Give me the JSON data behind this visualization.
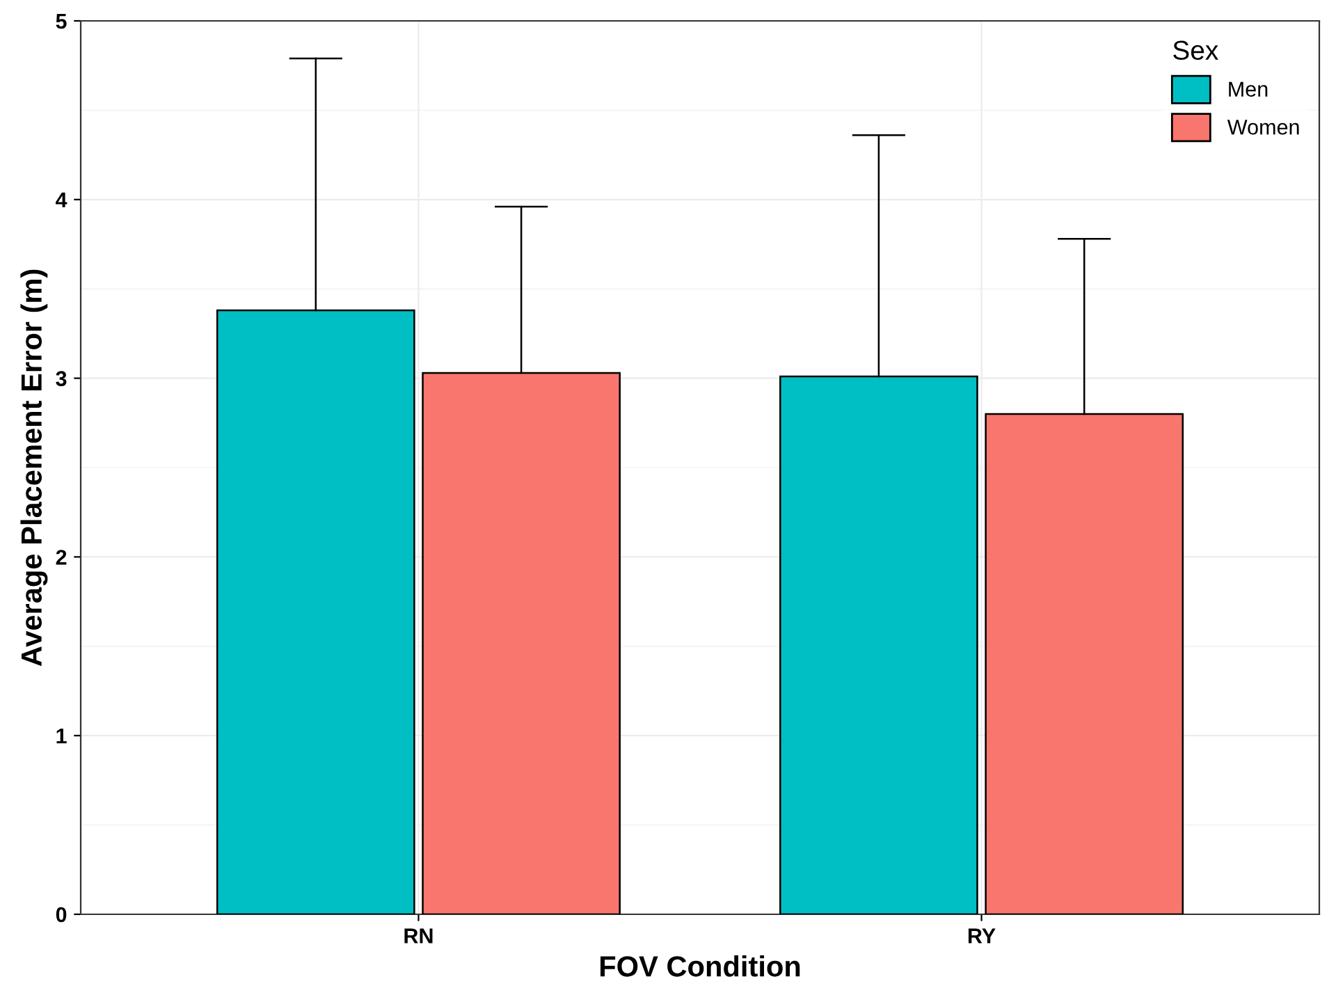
{
  "chart_data": {
    "type": "bar",
    "xlabel": "FOV Condition",
    "ylabel": "Average Placement Error (m)",
    "legend_title": "Sex",
    "categories": [
      "RN",
      "RY"
    ],
    "series": [
      {
        "name": "Men",
        "color": "#00bfc4",
        "values": [
          3.38,
          3.01
        ],
        "errors": [
          [
            3.38,
            4.79
          ],
          [
            3.01,
            4.36
          ]
        ]
      },
      {
        "name": "Women",
        "color": "#f8766d",
        "values": [
          3.03,
          2.8
        ],
        "errors": [
          [
            3.03,
            3.96
          ],
          [
            2.8,
            3.78
          ]
        ]
      }
    ],
    "ylim": [
      0,
      5
    ],
    "yticks": [
      0,
      1,
      2,
      3,
      4,
      5
    ],
    "grid": true,
    "legend": "top right"
  }
}
